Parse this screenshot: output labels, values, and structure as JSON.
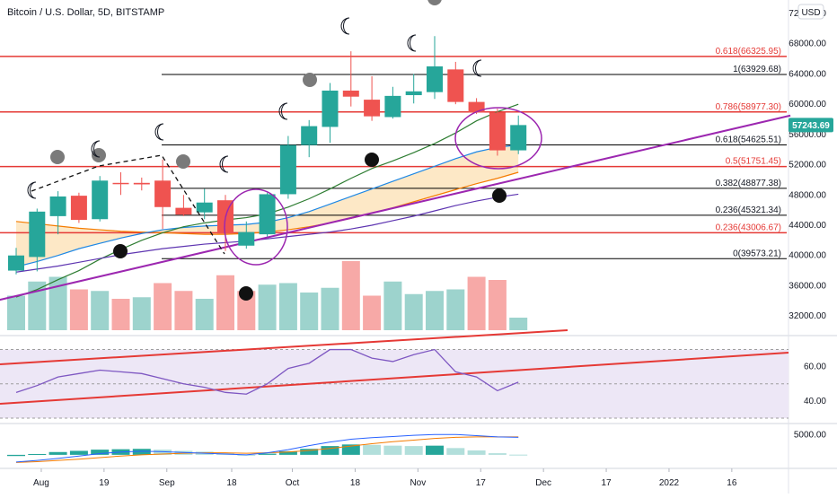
{
  "header": {
    "title": "Bitcoin / U.S. Dollar, 5D, BITSTAMP",
    "currency_badge": "USD"
  },
  "colors": {
    "up": "#26a69a",
    "down": "#ef5350",
    "volume_up": "#9dd3cd",
    "volume_down": "#f7a9a7",
    "fib_red": "#e53935",
    "fib_black": "#000000",
    "trend_purple": "#9c27b0",
    "ma_green": "#2e7d32",
    "ma_blue": "#1e88e5",
    "ma_orange": "#f57c00",
    "ma_purple": "#5e35b1",
    "cloud_fill": "#fde2b8",
    "rsi_line": "#7e57c2",
    "rsi_band": "#ede7f6",
    "rsi_channel": "#e53935",
    "macd_up": "#26a69a",
    "macd_down_soft": "#b2dfdb",
    "macd_signal": "#f57c00",
    "macd_line": "#2962ff",
    "current_price_bg": "#26a69a"
  },
  "chart_data": {
    "type": "candlestick",
    "ylim": [
      30000,
      72000
    ],
    "y_ticks": [
      "72000.00",
      "68000.00",
      "64000.00",
      "60000.00",
      "56000.00",
      "52000.00",
      "48000.00",
      "44000.00",
      "40000.00",
      "36000.00",
      "32000.00"
    ],
    "y_tick_values": [
      72000,
      68000,
      64000,
      60000,
      56000,
      52000,
      48000,
      44000,
      40000,
      36000,
      32000
    ],
    "x_ticks": [
      "Aug",
      "19",
      "Sep",
      "18",
      "Oct",
      "18",
      "Nov",
      "17",
      "Dec",
      "17",
      "2022",
      "16"
    ],
    "x_tick_index": [
      1.2,
      4.2,
      7.2,
      10.3,
      13.2,
      16.2,
      19.2,
      22.2,
      25.2,
      28.2,
      31.2,
      34.2
    ],
    "current_price": "57243.69",
    "current_price_value": 57243.69,
    "candles": [
      {
        "o": 38000,
        "h": 41000,
        "l": 37500,
        "c": 40000
      },
      {
        "o": 39800,
        "h": 46200,
        "l": 37900,
        "c": 45800
      },
      {
        "o": 45200,
        "h": 48500,
        "l": 42800,
        "c": 47800
      },
      {
        "o": 47900,
        "h": 48300,
        "l": 44300,
        "c": 44700
      },
      {
        "o": 44800,
        "h": 50500,
        "l": 44500,
        "c": 49900
      },
      {
        "o": 49600,
        "h": 51000,
        "l": 48000,
        "c": 49500
      },
      {
        "o": 49600,
        "h": 50300,
        "l": 48600,
        "c": 49400
      },
      {
        "o": 49900,
        "h": 52700,
        "l": 43500,
        "c": 46400
      },
      {
        "o": 46300,
        "h": 48000,
        "l": 45200,
        "c": 45400
      },
      {
        "o": 45700,
        "h": 48800,
        "l": 44800,
        "c": 47000
      },
      {
        "o": 47300,
        "h": 48000,
        "l": 40600,
        "c": 42900
      },
      {
        "o": 41300,
        "h": 44500,
        "l": 40900,
        "c": 43100
      },
      {
        "o": 42800,
        "h": 48300,
        "l": 42500,
        "c": 48100
      },
      {
        "o": 48100,
        "h": 55800,
        "l": 47500,
        "c": 54600
      },
      {
        "o": 54600,
        "h": 57900,
        "l": 53000,
        "c": 57100
      },
      {
        "o": 57000,
        "h": 62800,
        "l": 54900,
        "c": 61800
      },
      {
        "o": 61800,
        "h": 67000,
        "l": 59700,
        "c": 61000
      },
      {
        "o": 60600,
        "h": 63700,
        "l": 57800,
        "c": 58400
      },
      {
        "o": 58300,
        "h": 62300,
        "l": 58100,
        "c": 61100
      },
      {
        "o": 61200,
        "h": 64000,
        "l": 60100,
        "c": 61700
      },
      {
        "o": 61600,
        "h": 69000,
        "l": 60700,
        "c": 65000
      },
      {
        "o": 64600,
        "h": 65600,
        "l": 60000,
        "c": 60300
      },
      {
        "o": 60300,
        "h": 60800,
        "l": 58700,
        "c": 58900
      },
      {
        "o": 58900,
        "h": 59400,
        "l": 53200,
        "c": 53900
      },
      {
        "o": 53900,
        "h": 58500,
        "l": 53400,
        "c": 57243.69
      }
    ],
    "volume": [
      {
        "v": 22,
        "up": true
      },
      {
        "v": 31,
        "up": true
      },
      {
        "v": 34,
        "up": true
      },
      {
        "v": 26,
        "up": false
      },
      {
        "v": 25,
        "up": true
      },
      {
        "v": 20,
        "up": false
      },
      {
        "v": 21,
        "up": true
      },
      {
        "v": 30,
        "up": false
      },
      {
        "v": 25,
        "up": false
      },
      {
        "v": 20,
        "up": true
      },
      {
        "v": 35,
        "up": false
      },
      {
        "v": 25,
        "up": false
      },
      {
        "v": 29,
        "up": true
      },
      {
        "v": 30,
        "up": true
      },
      {
        "v": 24,
        "up": true
      },
      {
        "v": 27,
        "up": true
      },
      {
        "v": 44,
        "up": false
      },
      {
        "v": 22,
        "up": false
      },
      {
        "v": 31,
        "up": true
      },
      {
        "v": 23,
        "up": true
      },
      {
        "v": 25,
        "up": true
      },
      {
        "v": 26,
        "up": true
      },
      {
        "v": 34,
        "up": false
      },
      {
        "v": 32,
        "up": false
      },
      {
        "v": 8,
        "up": true
      }
    ],
    "fib_levels": [
      {
        "label": "0.618(66325.95)",
        "value": 66325.95,
        "color": "red"
      },
      {
        "label": "1(63929.68)",
        "value": 63929.68,
        "color": "black"
      },
      {
        "label": "0.786(58977.30)",
        "value": 58977.3,
        "color": "red"
      },
      {
        "label": "0.618(54625.51)",
        "value": 54625.51,
        "color": "black"
      },
      {
        "label": "0.5(51751.45)",
        "value": 51751.45,
        "color": "red"
      },
      {
        "label": "0.382(48877.38)",
        "value": 48877.38,
        "color": "black"
      },
      {
        "label": "0.236(45321.34)",
        "value": 45321.34,
        "color": "black"
      },
      {
        "label": "0.236(43006.67)",
        "value": 43006.67,
        "color": "red"
      },
      {
        "label": "0(39573.21)",
        "value": 39573.21,
        "color": "black"
      }
    ],
    "moving_averages": {
      "green": [
        34500,
        35500,
        36800,
        38000,
        39500,
        40800,
        42000,
        43000,
        43800,
        44300,
        44700,
        45000,
        45500,
        46400,
        47500,
        48800,
        50200,
        51500,
        52500,
        53600,
        54800,
        56200,
        57800,
        59000,
        60000
      ],
      "blue": [
        38500,
        39200,
        40000,
        40900,
        41600,
        42300,
        42900,
        43400,
        43700,
        43900,
        44000,
        44100,
        44400,
        45000,
        45800,
        46800,
        47800,
        48800,
        49800,
        50800,
        51800,
        52800,
        53700,
        54300,
        54600
      ],
      "orange": [
        44500,
        44200,
        43900,
        43600,
        43400,
        43200,
        43100,
        43000,
        42900,
        42800,
        42800,
        42900,
        43100,
        43400,
        43800,
        44300,
        44900,
        45600,
        46300,
        47100,
        47900,
        48700,
        49500,
        50200,
        51000
      ],
      "purple": [
        37800,
        38200,
        38600,
        39100,
        39600,
        40100,
        40500,
        40900,
        41200,
        41500,
        41700,
        41900,
        42200,
        42500,
        42800,
        43100,
        43500,
        44000,
        44600,
        45200,
        45900,
        46600,
        47200,
        47700,
        48100
      ]
    },
    "trend_line": {
      "start": {
        "i": -1,
        "v": 34000
      },
      "end": {
        "i": 37,
        "v": 58500
      }
    },
    "rsi": {
      "y_ticks": [
        "60.00",
        "40.00"
      ],
      "y_tick_values": [
        60,
        40
      ],
      "ylim": [
        30,
        75
      ],
      "values": [
        45,
        49,
        54,
        56,
        58,
        57,
        56,
        53,
        50,
        48,
        45,
        44,
        50,
        59,
        62,
        70,
        70,
        65,
        63,
        67,
        70,
        57,
        54,
        46,
        51
      ]
    },
    "macd": {
      "y_ticks": [
        "5000.00"
      ],
      "y_tick_values": [
        5000
      ],
      "ylim": [
        -2500,
        6500
      ],
      "hist": [
        -300,
        200,
        700,
        1000,
        1300,
        1400,
        1500,
        1300,
        1000,
        800,
        400,
        0,
        300,
        900,
        1500,
        2200,
        2600,
        2500,
        2300,
        2200,
        2300,
        1700,
        1100,
        400,
        50
      ],
      "macd": [
        -1800,
        -1400,
        -900,
        -300,
        300,
        700,
        900,
        800,
        600,
        400,
        200,
        0,
        500,
        1300,
        2300,
        3200,
        3900,
        4300,
        4600,
        4900,
        5100,
        5100,
        4800,
        4500,
        4400
      ],
      "signal": [
        -1900,
        -1700,
        -1400,
        -1100,
        -700,
        -300,
        0,
        200,
        400,
        500,
        500,
        400,
        500,
        700,
        1100,
        1600,
        2200,
        2800,
        3300,
        3700,
        4100,
        4400,
        4500,
        4500,
        4500
      ]
    }
  }
}
